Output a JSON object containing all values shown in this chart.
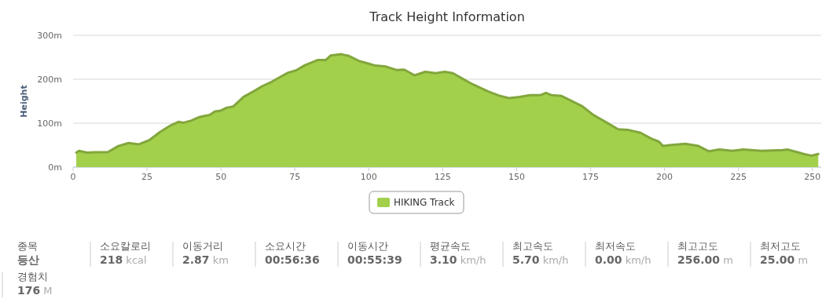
{
  "chart_data": [
    {
      "type": "area",
      "title": "Track Height Information",
      "ylabel": "Height",
      "xlim": [
        0,
        253
      ],
      "ylim": [
        0,
        300
      ],
      "xticks": [
        0,
        25,
        50,
        75,
        100,
        125,
        150,
        175,
        200,
        225,
        250
      ],
      "yticks": [
        {
          "value": 0,
          "label": "0m"
        },
        {
          "value": 100,
          "label": "100m"
        },
        {
          "value": 200,
          "label": "200m"
        },
        {
          "value": 300,
          "label": "300m"
        }
      ],
      "grid": "y",
      "legend": "bottom",
      "x": [
        1.1,
        2,
        4.7,
        7.3,
        11.7,
        15.3,
        18.8,
        22.3,
        25.9,
        29.4,
        33,
        35.6,
        37.4,
        40,
        42.7,
        46.2,
        48,
        49.7,
        51.9,
        54.2,
        57.7,
        61.2,
        63.9,
        67.4,
        70,
        72.7,
        75.4,
        78.4,
        82.8,
        85.5,
        87.1,
        90.7,
        93.3,
        96.9,
        99.6,
        102.2,
        105.8,
        109.3,
        112,
        115.5,
        119.1,
        122.6,
        125.7,
        128.4,
        131.5,
        135,
        140.4,
        143.9,
        147.5,
        151,
        154.6,
        158.1,
        159.9,
        161.7,
        165.2,
        167.9,
        172.3,
        175.9,
        180.3,
        184.3,
        187.5,
        191.9,
        195.5,
        198.1,
        199.5,
        201.7,
        207,
        211.5,
        215,
        218.6,
        223,
        226.6,
        232.8,
        240,
        241.7,
        247.1,
        249.7,
        252
      ],
      "series": [
        {
          "name": "HIKING Track",
          "color": "#a2d04b",
          "values": [
            33,
            37,
            33,
            34,
            34,
            48,
            55,
            52,
            62,
            80,
            95,
            103,
            101,
            106,
            114,
            119,
            127,
            128,
            135,
            138,
            160,
            173,
            184,
            195,
            205,
            215,
            220,
            232,
            244,
            244,
            254,
            257,
            253,
            241,
            236,
            231,
            229,
            221,
            222,
            209,
            217,
            214,
            217,
            214,
            202,
            189,
            172,
            163,
            157,
            160,
            164,
            164,
            169,
            164,
            162,
            153,
            138,
            119,
            102,
            86,
            85,
            78,
            65,
            58,
            48,
            50,
            53,
            48,
            36,
            40,
            37,
            40,
            37,
            39,
            40,
            30,
            26,
            30
          ]
        }
      ]
    },
    {
      "type": "other",
      "annotations": [
        "종목",
        "등산",
        "소요칼로리",
        "218 kcal",
        "이동거리",
        "2.87 km",
        "소요시간",
        "00:56:36",
        "이동시간",
        "00:55:39",
        "평균속도",
        "3.10 km/h",
        "최고속도",
        "5.70 km/h",
        "최저속도",
        "0.00 km/h",
        "최고고도",
        "256.00 m",
        "최저고도",
        "25.00 m",
        "경험치",
        "176 M"
      ]
    }
  ]
}
